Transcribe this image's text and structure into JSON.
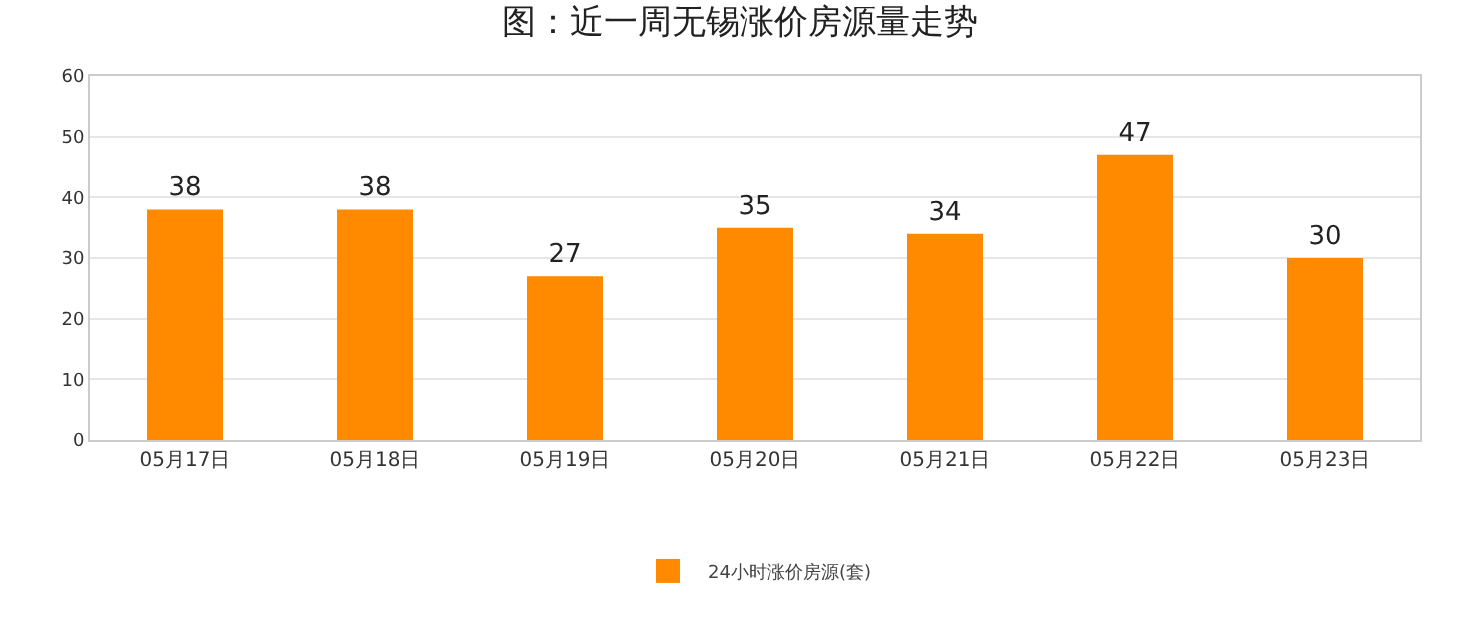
{
  "chart_data": {
    "type": "bar",
    "title": "图：近一周无锡涨价房源量走势",
    "categories": [
      "05月17日",
      "05月18日",
      "05月19日",
      "05月20日",
      "05月21日",
      "05月22日",
      "05月23日"
    ],
    "series": [
      {
        "name": "24小时涨价房源(套)",
        "color": "#ff8a00",
        "values": [
          38,
          38,
          27,
          35,
          34,
          47,
          30
        ]
      }
    ],
    "ylim": [
      0,
      60
    ],
    "yticks": [
      0,
      10,
      20,
      30,
      40,
      50,
      60
    ],
    "grid": "y",
    "legend": "bottom",
    "data_labels": true
  }
}
